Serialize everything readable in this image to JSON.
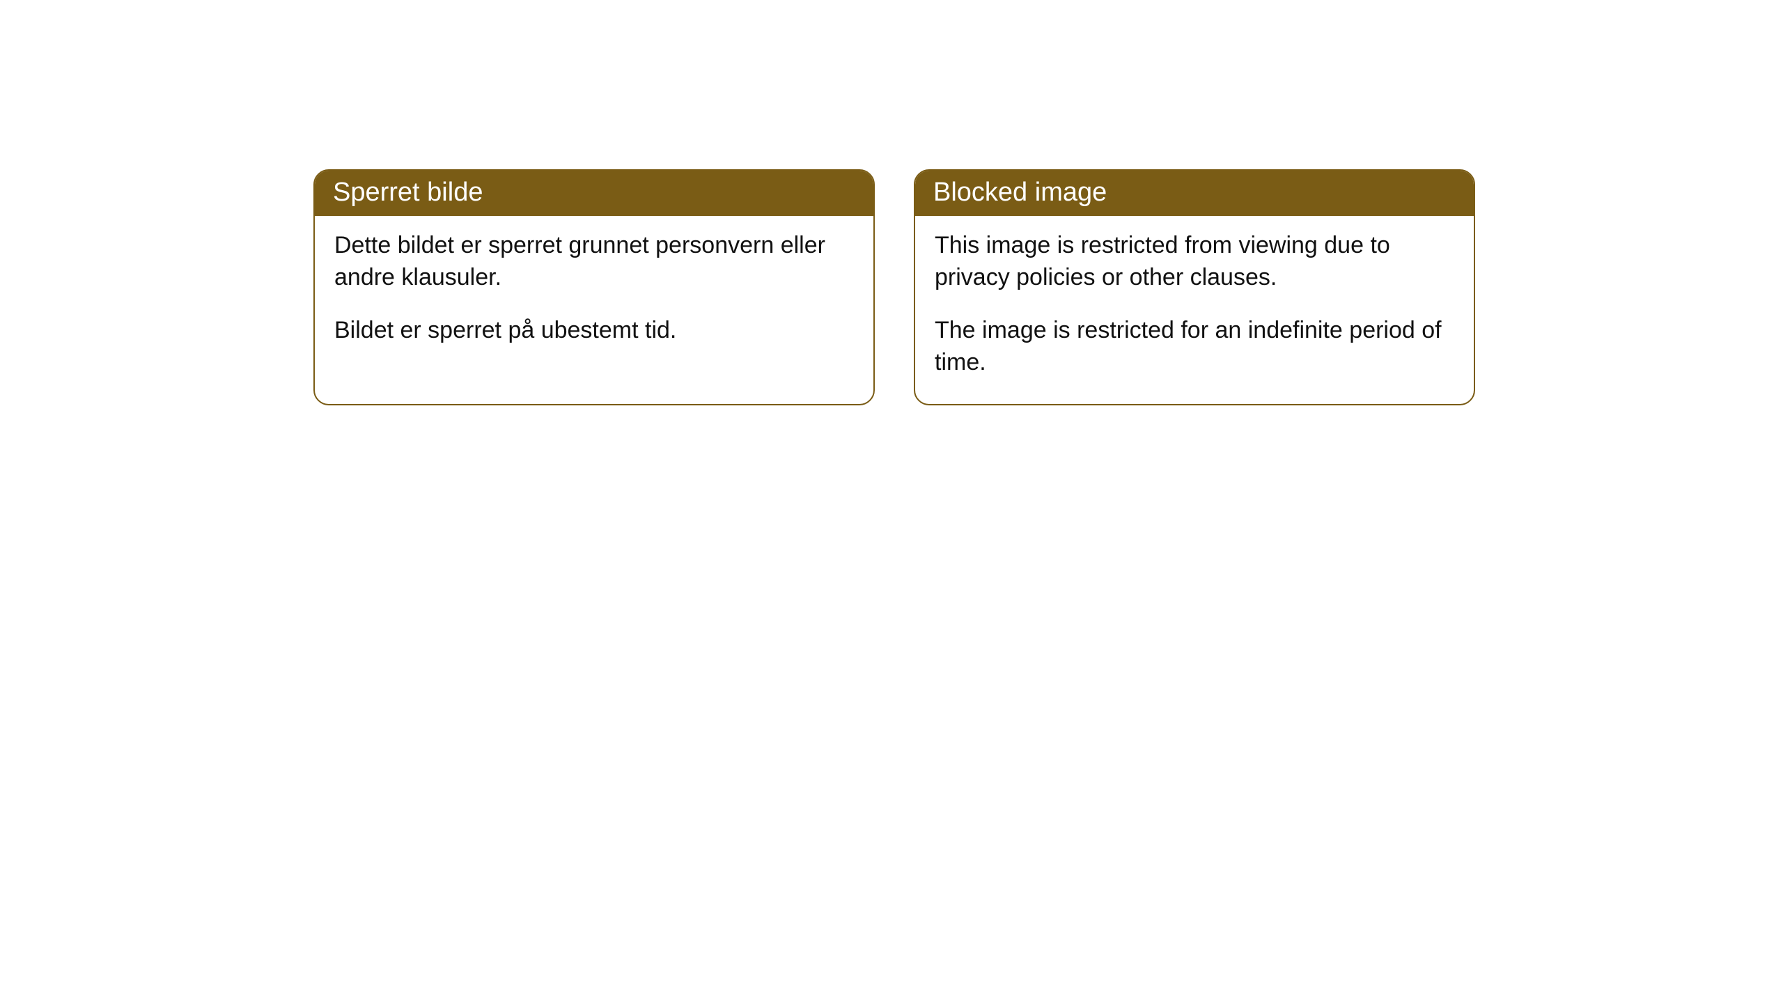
{
  "colors": {
    "header_bg": "#7a5c15",
    "border": "#7a5c15",
    "header_text": "#ffffff",
    "body_text": "#111111",
    "page_bg": "#ffffff"
  },
  "boxes": [
    {
      "title": "Sperret bilde",
      "paragraphs": [
        "Dette bildet er sperret grunnet personvern eller andre klausuler.",
        "Bildet er sperret på ubestemt tid."
      ]
    },
    {
      "title": "Blocked image",
      "paragraphs": [
        "This image is restricted from viewing due to privacy policies or other clauses.",
        "The image is restricted for an indefinite period of time."
      ]
    }
  ]
}
